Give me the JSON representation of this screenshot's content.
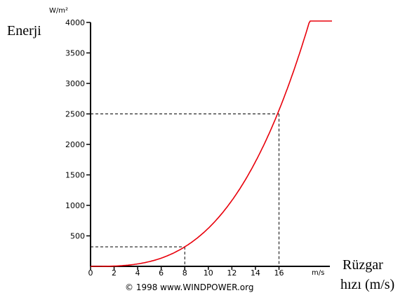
{
  "chart_data": {
    "type": "line",
    "y_unit": "W/m²",
    "ylabel": "Enerji",
    "x_unit": "m/s",
    "xlabel_line1": "Rüzgar",
    "xlabel_line2": "hızı (m/s)",
    "credit": "© 1998 www.WINDPOWER.org",
    "xlim": [
      0,
      20.5
    ],
    "ylim": [
      0,
      4000
    ],
    "xticks": [
      0,
      2,
      4,
      6,
      8,
      10,
      12,
      14,
      16
    ],
    "yticks": [
      500,
      1000,
      1500,
      2000,
      2500,
      3000,
      3500,
      4000
    ],
    "series": [
      {
        "color": "#e8000b",
        "x": [
          0,
          2,
          4,
          6,
          8,
          10,
          12,
          14,
          16,
          18,
          20.5
        ],
        "y": [
          0,
          5,
          40,
          135,
          320,
          625,
          1080,
          1715,
          2560,
          3645,
          4000
        ]
      }
    ],
    "reference_lines": [
      {
        "x": 8,
        "y": 320
      },
      {
        "x": 16,
        "y": 2500
      }
    ]
  }
}
